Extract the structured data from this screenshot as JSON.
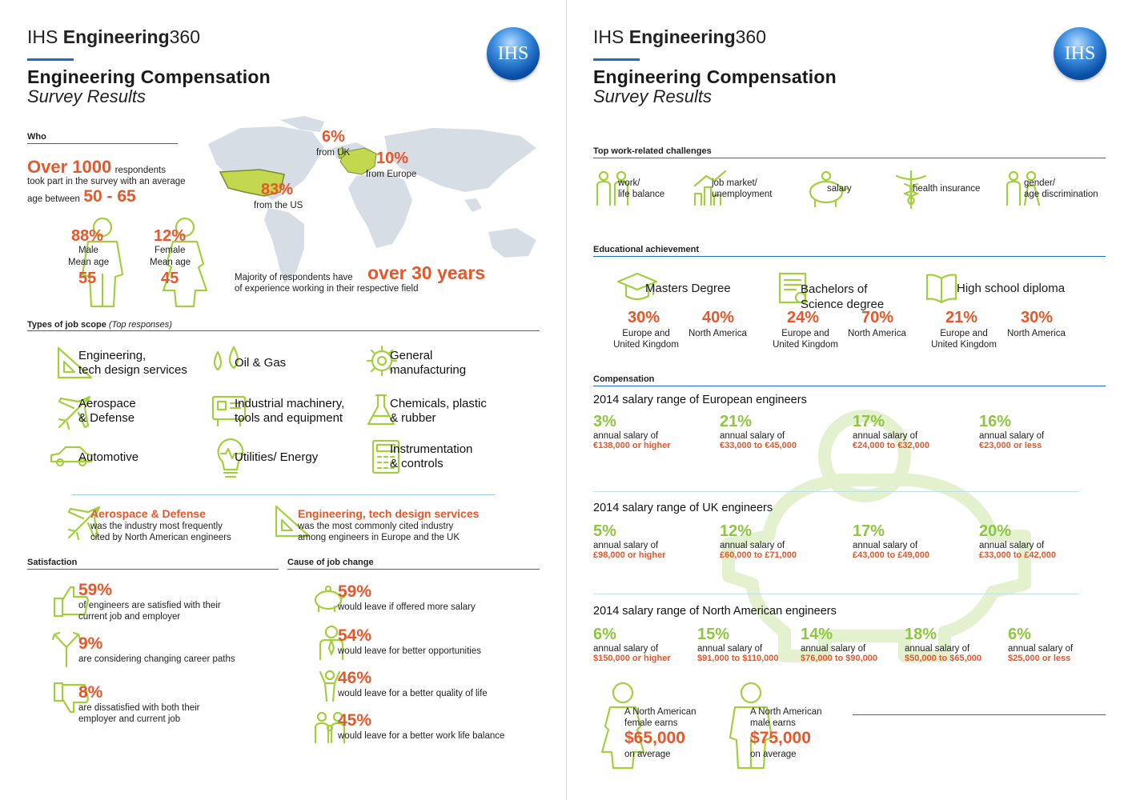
{
  "brand": {
    "prefix": "IHS ",
    "bold": "Engineering",
    "suffix": "360",
    "logo_text": "IHS"
  },
  "title": "Engineering Compensation",
  "subtitle": "Survey Results",
  "left": {
    "who": {
      "section": "Who",
      "over": "Over 1000",
      "respondents": "respondents",
      "line2": "took part in the survey with an  average",
      "line3": "age between",
      "age_range": "50 - 65",
      "uk_pct": "6%",
      "uk_label": "from UK",
      "eu_pct": "10%",
      "eu_label": "from Europe",
      "us_pct": "83%",
      "us_label": "from the US",
      "male_pct": "88%",
      "male_label": "Male",
      "male_mean": "Mean age",
      "male_age": "55",
      "female_pct": "12%",
      "female_label": "Female",
      "female_mean": "Mean age",
      "female_age": "45",
      "exp_pre": "Majority of respondents have",
      "exp_big": "over 30 years",
      "exp_post": "of experience working in their respective field"
    },
    "jobs": {
      "section": "Types of job scope",
      "section_note": "(Top responses)",
      "items": [
        {
          "l1": "Engineering,",
          "l2": "tech design services"
        },
        {
          "l1": "Oil & Gas",
          "l2": ""
        },
        {
          "l1": "General",
          "l2": "manufacturing"
        },
        {
          "l1": "Aerospace",
          "l2": "& Defense"
        },
        {
          "l1": "Industrial machinery,",
          "l2": "tools and equipment"
        },
        {
          "l1": "Chemicals, plastic",
          "l2": "& rubber"
        },
        {
          "l1": "Automotive",
          "l2": ""
        },
        {
          "l1": "Utilities/ Energy",
          "l2": ""
        },
        {
          "l1": "Instrumentation",
          "l2": "& controls"
        }
      ],
      "hl1_title": "Aerospace & Defense",
      "hl1_l1": "was the industry most frequently",
      "hl1_l2": "cited by North American engineers",
      "hl2_title": "Engineering, tech design services",
      "hl2_l1": "was the most commonly cited industry",
      "hl2_l2": "among engineers in Europe and the UK"
    },
    "satisfaction": {
      "section": "Satisfaction",
      "items": [
        {
          "pct": "59%",
          "l1": "of engineers are satisfied with their",
          "l2": "current job and employer"
        },
        {
          "pct": "9%",
          "l1": "are considering changing career paths",
          "l2": ""
        },
        {
          "pct": "8%",
          "l1": "are dissatisfied with both their",
          "l2": "employer and current job"
        }
      ]
    },
    "cause": {
      "section": "Cause of job change",
      "items": [
        {
          "pct": "59%",
          "l1": "would leave if offered more salary"
        },
        {
          "pct": "54%",
          "l1": "would leave for better opportunities"
        },
        {
          "pct": "46%",
          "l1": "would leave for a better quality of life"
        },
        {
          "pct": "45%",
          "l1": "would leave for a better work life balance"
        }
      ]
    }
  },
  "right": {
    "challenges": {
      "section": "Top work-related challenges",
      "items": [
        {
          "l1": "work/",
          "l2": "life balance"
        },
        {
          "l1": "job market/",
          "l2": "unemployment"
        },
        {
          "l1": "salary",
          "l2": ""
        },
        {
          "l1": "health insurance",
          "l2": ""
        },
        {
          "l1": "gender/",
          "l2": "age discrimination"
        }
      ]
    },
    "education": {
      "section": "Educational achievement",
      "degrees": [
        {
          "title": "Masters Degree",
          "title2": "",
          "eu_pct": "30%",
          "na_pct": "40%"
        },
        {
          "title": "Bachelors of",
          "title2": "Science degree",
          "eu_pct": "24%",
          "na_pct": "70%"
        },
        {
          "title": "High school diploma",
          "title2": "",
          "eu_pct": "21%",
          "na_pct": "30%"
        }
      ],
      "eu_l1": "Europe and",
      "eu_l2": "United Kingdom",
      "na_label": "North America"
    },
    "compensation": {
      "section": "Compensation",
      "annual": "annual salary of",
      "europe": {
        "title": "2014 salary range of European engineers",
        "items": [
          {
            "pct": "3%",
            "amt": "€138,000 or higher"
          },
          {
            "pct": "21%",
            "amt": "€33,000 to €45,000"
          },
          {
            "pct": "17%",
            "amt": "€24,000 to €32,000"
          },
          {
            "pct": "16%",
            "amt": "€23,000 or less"
          }
        ]
      },
      "uk": {
        "title": "2014 salary range of UK engineers",
        "items": [
          {
            "pct": "5%",
            "amt": "£98,000 or higher"
          },
          {
            "pct": "12%",
            "amt": "£60,000 to £71,000"
          },
          {
            "pct": "17%",
            "amt": "£43,000 to £49,000"
          },
          {
            "pct": "20%",
            "amt": "£33,000 to £42,000"
          }
        ]
      },
      "na": {
        "title": "2014 salary range of North American engineers",
        "items": [
          {
            "pct": "6%",
            "amt": "$150,000 or higher"
          },
          {
            "pct": "15%",
            "amt": "$91,000 to $110,000"
          },
          {
            "pct": "14%",
            "amt": "$76,000 to $90,000"
          },
          {
            "pct": "18%",
            "amt": "$50,000 to $65,000"
          },
          {
            "pct": "6%",
            "amt": "$25,000 or less"
          }
        ]
      },
      "female_l1": "A North American",
      "female_l2": "female earns",
      "female_amt": "$65,000",
      "female_avg": "on average",
      "male_l1": "A North American",
      "male_l2": "male earns",
      "male_amt": "$75,000",
      "male_avg": "on average"
    }
  },
  "colors": {
    "accent_blue": "#1a6fc2",
    "orange": "#e8562a",
    "green": "#8dc63f"
  }
}
